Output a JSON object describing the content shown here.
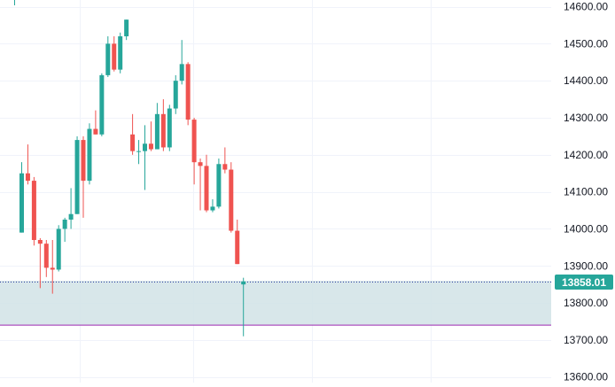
{
  "colors": {
    "up": "#26a69a",
    "down": "#ef5350",
    "grid": "#f0f3fa",
    "axis_text": "#131722",
    "zone_fill": "#d1e3e6",
    "zone_line": "#9c27b0",
    "price_line": "#2a3b9e",
    "price_label_bg": "#26a69a",
    "price_label_text": "#ffffff"
  },
  "chart_data": {
    "type": "candlestick",
    "y_axis": {
      "position": "right",
      "range": [
        13585,
        14618
      ],
      "ticks": [
        "13600.00",
        "13700.00",
        "13800.00",
        "13900.00",
        "14000.00",
        "14100.00",
        "14200.00",
        "14300.00",
        "14400.00",
        "14500.00",
        "14600.00"
      ]
    },
    "grid": true,
    "candles": [
      {
        "o": 13990,
        "h": 14180,
        "l": 13990,
        "c": 14150
      },
      {
        "o": 14150,
        "h": 14228,
        "l": 14120,
        "c": 14130
      },
      {
        "o": 14130,
        "h": 14140,
        "l": 13955,
        "c": 13970
      },
      {
        "o": 13970,
        "h": 13975,
        "l": 13840,
        "c": 13960
      },
      {
        "o": 13960,
        "h": 13970,
        "l": 13870,
        "c": 13895
      },
      {
        "o": 13895,
        "h": 13970,
        "l": 13825,
        "c": 13890
      },
      {
        "o": 13890,
        "h": 14010,
        "l": 13885,
        "c": 14000
      },
      {
        "o": 14000,
        "h": 14030,
        "l": 13965,
        "c": 14025
      },
      {
        "o": 14025,
        "h": 14110,
        "l": 14000,
        "c": 14040
      },
      {
        "o": 14040,
        "h": 14250,
        "l": 14040,
        "c": 14240
      },
      {
        "o": 14240,
        "h": 14250,
        "l": 14030,
        "c": 14130
      },
      {
        "o": 14130,
        "h": 14285,
        "l": 14120,
        "c": 14270
      },
      {
        "o": 14270,
        "h": 14320,
        "l": 14255,
        "c": 14255
      },
      {
        "o": 14255,
        "h": 14420,
        "l": 14250,
        "c": 14415
      },
      {
        "o": 14415,
        "h": 14520,
        "l": 14410,
        "c": 14500
      },
      {
        "o": 14500,
        "h": 14520,
        "l": 14425,
        "c": 14430
      },
      {
        "o": 14430,
        "h": 14530,
        "l": 14420,
        "c": 14520
      },
      {
        "o": 14520,
        "h": 14565,
        "l": 14510,
        "c": 14565
      },
      {
        "o": 14255,
        "h": 14310,
        "l": 14200,
        "c": 14210
      },
      {
        "o": 14210,
        "h": 14240,
        "l": 14175,
        "c": 14210
      },
      {
        "o": 14210,
        "h": 14280,
        "l": 14105,
        "c": 14230
      },
      {
        "o": 14230,
        "h": 14290,
        "l": 14210,
        "c": 14215
      },
      {
        "o": 14215,
        "h": 14340,
        "l": 14215,
        "c": 14310
      },
      {
        "o": 14310,
        "h": 14350,
        "l": 14210,
        "c": 14220
      },
      {
        "o": 14220,
        "h": 14335,
        "l": 14210,
        "c": 14325
      },
      {
        "o": 14325,
        "h": 14415,
        "l": 14310,
        "c": 14400
      },
      {
        "o": 14400,
        "h": 14510,
        "l": 14390,
        "c": 14445
      },
      {
        "o": 14445,
        "h": 14450,
        "l": 14280,
        "c": 14295
      },
      {
        "o": 14295,
        "h": 14300,
        "l": 14120,
        "c": 14180
      },
      {
        "o": 14180,
        "h": 14190,
        "l": 14050,
        "c": 14170
      },
      {
        "o": 14170,
        "h": 14200,
        "l": 14045,
        "c": 14050
      },
      {
        "o": 14050,
        "h": 14080,
        "l": 14045,
        "c": 14060
      },
      {
        "o": 14060,
        "h": 14190,
        "l": 14055,
        "c": 14175
      },
      {
        "o": 14175,
        "h": 14220,
        "l": 14150,
        "c": 14160
      },
      {
        "o": 14160,
        "h": 14180,
        "l": 13990,
        "c": 13995
      },
      {
        "o": 13995,
        "h": 14025,
        "l": 13905,
        "c": 13905
      },
      {
        "o": 13850,
        "h": 13868,
        "l": 13710,
        "c": 13858
      }
    ],
    "zone": {
      "top": 13860,
      "bottom": 13740
    },
    "last_price": {
      "value": 13858.01,
      "label": "13858.01"
    }
  }
}
